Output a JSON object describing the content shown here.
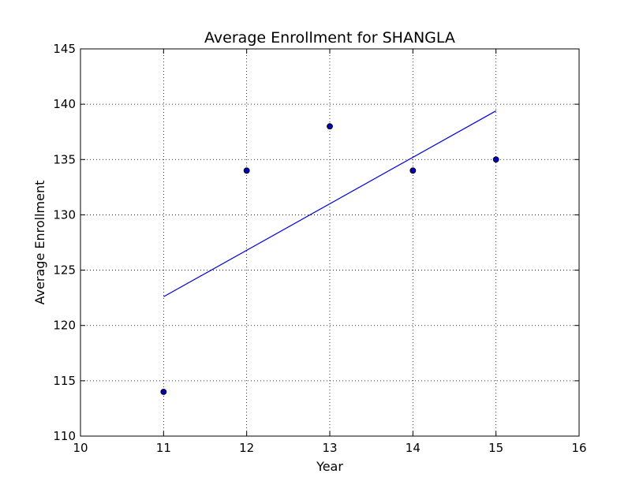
{
  "chart_data": {
    "type": "scatter",
    "title": "Average Enrollment for SHANGLA",
    "xlabel": "Year",
    "ylabel": "Average Enrollment",
    "xlim": [
      10,
      16
    ],
    "ylim": [
      110,
      145
    ],
    "xticks": [
      10,
      11,
      12,
      13,
      14,
      15,
      16
    ],
    "yticks": [
      110,
      115,
      120,
      125,
      130,
      135,
      140,
      145
    ],
    "grid": true,
    "series": [
      {
        "type": "scatter",
        "x": [
          11,
          12,
          13,
          14,
          15
        ],
        "y": [
          114,
          134,
          138,
          134,
          135
        ]
      },
      {
        "type": "line",
        "x": [
          11,
          15
        ],
        "y": [
          122.6,
          139.4
        ]
      }
    ],
    "colors": {
      "point_fill": "#0000bf",
      "point_edge": "#000000",
      "line": "#0000ff",
      "grid": "#000000",
      "frame": "#000000"
    }
  }
}
